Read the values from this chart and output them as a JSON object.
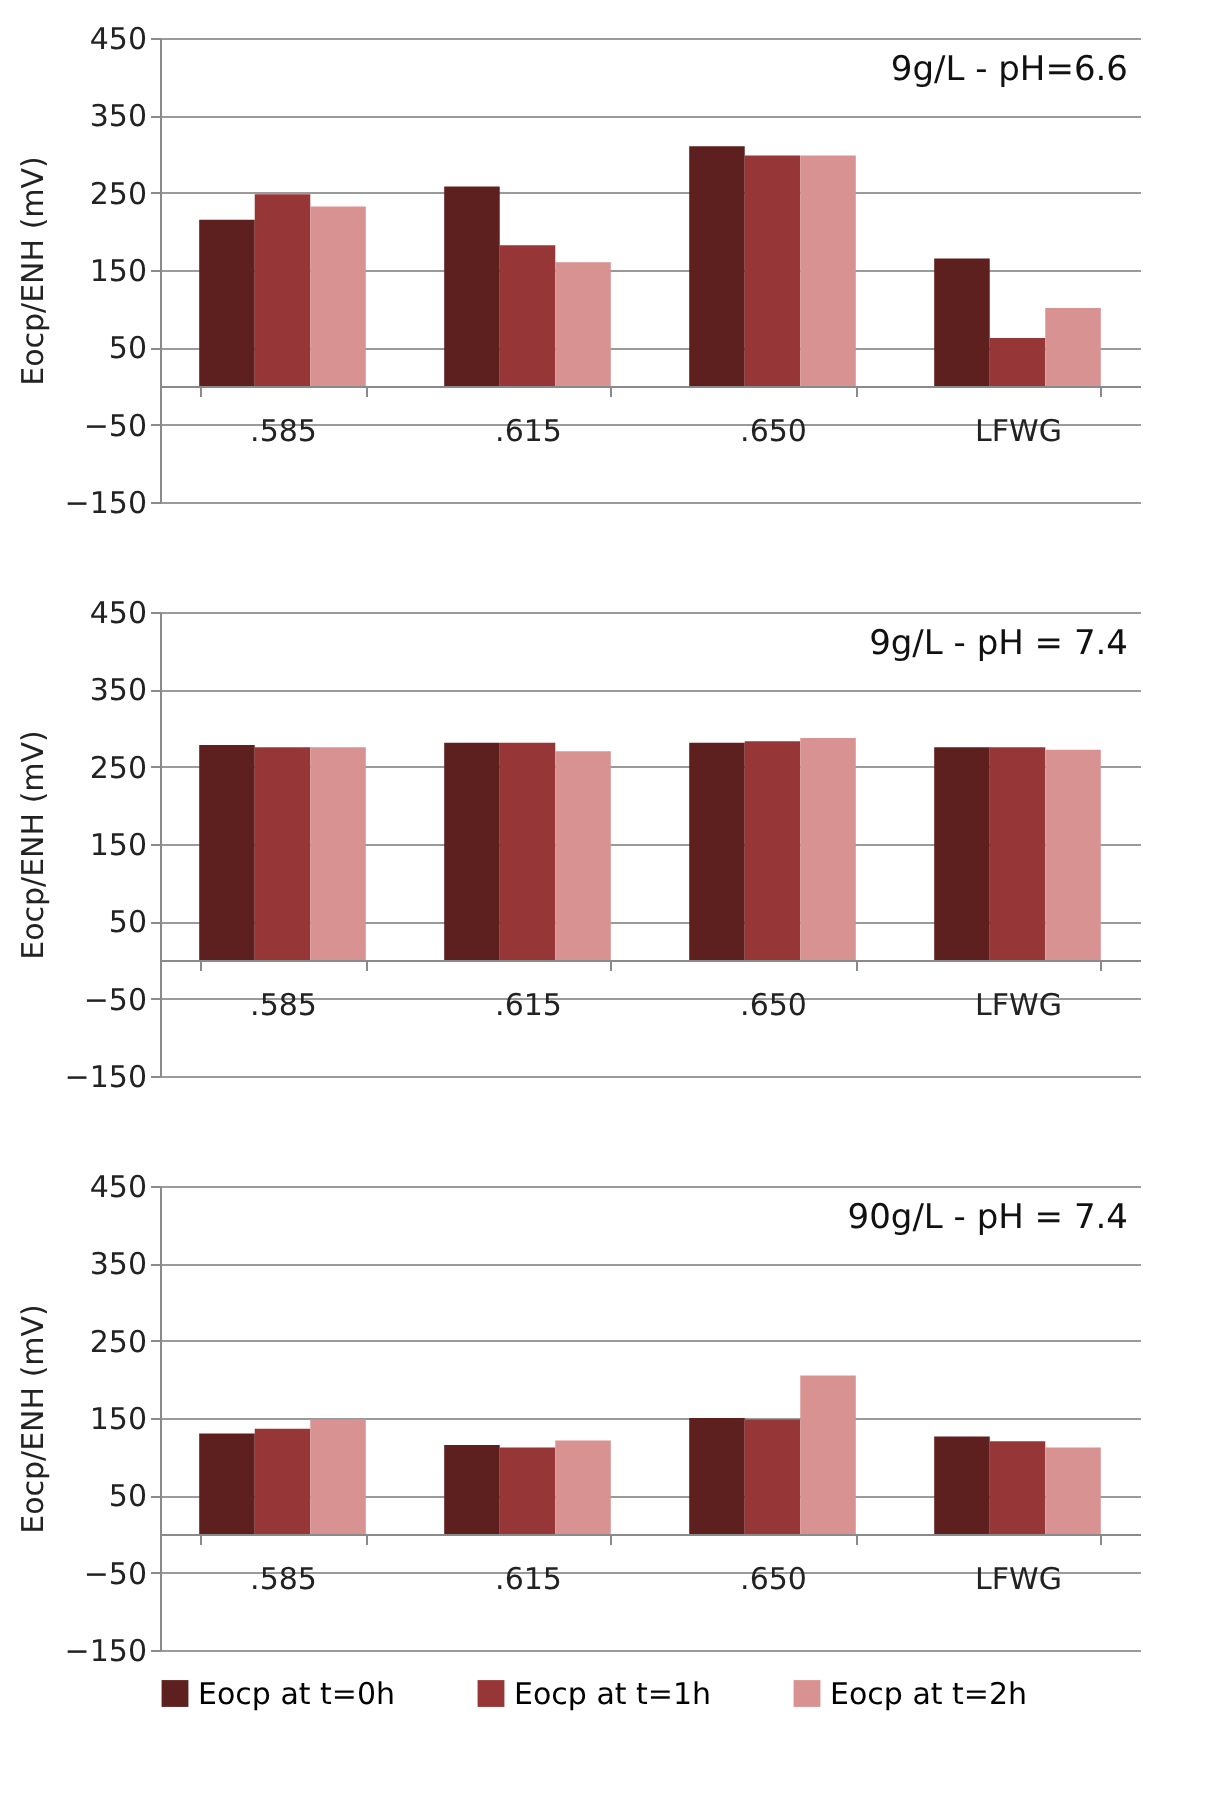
{
  "chart_data": [
    {
      "type": "bar",
      "title": "9g/L - pH=6.6",
      "ylabel": "Eocp/ENH (mV)",
      "categories": [
        ".585",
        ".615",
        ".650",
        "LFWG"
      ],
      "ylim": [
        -150,
        450
      ],
      "yticks": [
        -150,
        -50,
        50,
        150,
        250,
        350,
        450
      ],
      "grid": "y",
      "series": [
        {
          "color": "#5e1f1f",
          "values": [
            215,
            258,
            310,
            165
          ]
        },
        {
          "color": "#963636",
          "values": [
            248,
            182,
            298,
            62
          ]
        },
        {
          "color": "#d99292",
          "values": [
            232,
            160,
            298,
            101
          ]
        }
      ]
    },
    {
      "type": "bar",
      "title": "9g/L - pH = 7.4",
      "ylabel": "Eocp/ENH (mV)",
      "categories": [
        ".585",
        ".615",
        ".650",
        "LFWG"
      ],
      "ylim": [
        -150,
        450
      ],
      "yticks": [
        -150,
        -50,
        50,
        150,
        250,
        350,
        450
      ],
      "grid": "y",
      "series": [
        {
          "color": "#5e1f1f",
          "values": [
            278,
            281,
            281,
            275
          ]
        },
        {
          "color": "#963636",
          "values": [
            275,
            281,
            283,
            275
          ]
        },
        {
          "color": "#d99292",
          "values": [
            275,
            270,
            287,
            272
          ]
        }
      ]
    },
    {
      "type": "bar",
      "title": "90g/L - pH = 7.4",
      "ylabel": "Eocp/ENH (mV)",
      "categories": [
        ".585",
        ".615",
        ".650",
        "LFWG"
      ],
      "ylim": [
        -150,
        450
      ],
      "yticks": [
        -150,
        -50,
        50,
        150,
        250,
        350,
        450
      ],
      "grid": "y",
      "legend": "bottom",
      "series": [
        {
          "name": "Eocp at t=0h",
          "color": "#5e1f1f",
          "values": [
            130,
            115,
            150,
            126
          ]
        },
        {
          "name": "Eocp at t=1h",
          "color": "#963636",
          "values": [
            136,
            112,
            148,
            120
          ]
        },
        {
          "name": "Eocp at t=2h",
          "color": "#d99292",
          "values": [
            148,
            121,
            205,
            112
          ]
        }
      ]
    }
  ]
}
